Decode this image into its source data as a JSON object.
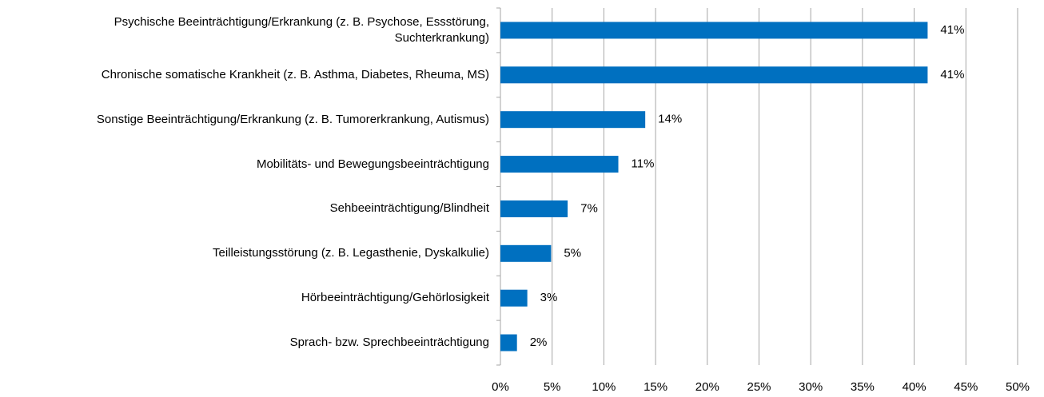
{
  "chart_data": {
    "type": "bar",
    "orientation": "horizontal",
    "categories": [
      "Psychische Beeinträchtigung/Erkrankung (z. B. Psychose, Essstörung, Suchterkrankung)",
      "Chronische somatische Krankheit (z. B. Asthma, Diabetes, Rheuma, MS)",
      "Sonstige Beeinträchtigung/Erkrankung (z. B. Tumorerkrankung, Autismus)",
      "Mobilitäts- und Bewegungsbeeinträchtigung",
      "Sehbeeinträchtigung/Blindheit",
      "Teilleistungsstörung (z. B. Legasthenie, Dyskalkulie)",
      "Hörbeeinträchtigung/Gehörlosigkeit",
      "Sprach- bzw. Sprechbeeinträchtigung"
    ],
    "values": [
      41.3,
      41.3,
      14.0,
      11.4,
      6.5,
      4.9,
      2.6,
      1.6
    ],
    "value_labels": [
      "41%",
      "41%",
      "14%",
      "11%",
      "7%",
      "5%",
      "3%",
      "2%"
    ],
    "color": "#0070c0",
    "xlim": [
      0,
      50
    ],
    "xticks": [
      {
        "value": 0,
        "label": "0%"
      },
      {
        "value": 5,
        "label": "5%"
      },
      {
        "value": 10,
        "label": "10%"
      },
      {
        "value": 15,
        "label": "15%"
      },
      {
        "value": 20,
        "label": "20%"
      },
      {
        "value": 25,
        "label": "25%"
      },
      {
        "value": 30,
        "label": "30%"
      },
      {
        "value": 35,
        "label": "35%"
      },
      {
        "value": 40,
        "label": "40%"
      },
      {
        "value": 45,
        "label": "45%"
      },
      {
        "value": 50,
        "label": "50%"
      }
    ],
    "grid": true
  }
}
